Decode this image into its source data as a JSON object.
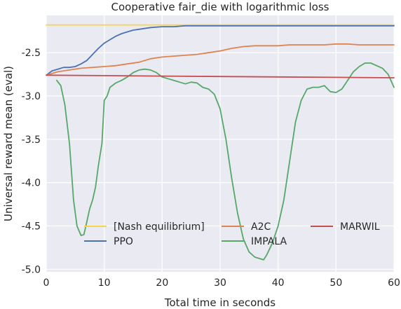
{
  "chart_data": {
    "type": "line",
    "title": "Cooperative fair_die with logarithmic loss",
    "xlabel": "Total time in seconds",
    "ylabel": "Universal reward mean (eval)",
    "xlim": [
      0,
      60
    ],
    "ylim": [
      -5.03,
      -2.07
    ],
    "xticks": [
      0,
      10,
      20,
      30,
      40,
      50,
      60
    ],
    "yticks": [
      -5.0,
      -4.5,
      -4.0,
      -3.5,
      -3.0,
      -2.5
    ],
    "xtick_labels": [
      "0",
      "10",
      "20",
      "30",
      "40",
      "50",
      "60"
    ],
    "ytick_labels": [
      "-5.0",
      "-4.5",
      "-4.0",
      "-3.5",
      "-3.0",
      "-2.5"
    ],
    "grid": true,
    "legend_position": "lower-center",
    "legend_columns": 3,
    "series": [
      {
        "name": "[Nash equilibrium]",
        "color": "#f7d547",
        "x": [
          0,
          60
        ],
        "y": [
          -2.18,
          -2.18
        ]
      },
      {
        "name": "PPO",
        "color": "#4c72b0",
        "x": [
          0,
          1,
          2,
          3,
          4,
          5,
          6,
          7,
          8,
          9,
          10,
          11,
          12,
          13,
          14,
          15,
          16,
          18,
          20,
          22,
          24,
          26,
          28,
          30,
          35,
          40,
          45,
          50,
          55,
          60
        ],
        "y": [
          -2.76,
          -2.71,
          -2.69,
          -2.67,
          -2.67,
          -2.66,
          -2.63,
          -2.59,
          -2.52,
          -2.45,
          -2.39,
          -2.35,
          -2.31,
          -2.28,
          -2.26,
          -2.24,
          -2.23,
          -2.21,
          -2.2,
          -2.2,
          -2.19,
          -2.19,
          -2.19,
          -2.19,
          -2.19,
          -2.19,
          -2.19,
          -2.19,
          -2.19,
          -2.19
        ]
      },
      {
        "name": "A2C",
        "color": "#dd8452",
        "x": [
          0,
          2,
          4,
          6,
          8,
          10,
          12,
          14,
          16,
          18,
          20,
          22,
          24,
          26,
          28,
          30,
          32,
          34,
          36,
          38,
          40,
          42,
          44,
          46,
          48,
          50,
          52,
          54,
          56,
          58,
          60
        ],
        "y": [
          -2.76,
          -2.72,
          -2.7,
          -2.68,
          -2.67,
          -2.66,
          -2.65,
          -2.63,
          -2.61,
          -2.57,
          -2.55,
          -2.54,
          -2.53,
          -2.52,
          -2.5,
          -2.48,
          -2.45,
          -2.43,
          -2.42,
          -2.42,
          -2.42,
          -2.41,
          -2.41,
          -2.41,
          -2.41,
          -2.4,
          -2.4,
          -2.41,
          -2.41,
          -2.41,
          -2.41
        ]
      },
      {
        "name": "IMPALA",
        "color": "#55a868",
        "x": [
          1.8,
          2.5,
          3.2,
          4,
          4.7,
          5.3,
          6,
          6.5,
          7,
          7.5,
          8,
          8.5,
          9,
          9.6,
          10,
          10.5,
          11,
          12,
          13,
          14,
          15,
          16,
          17,
          18,
          19,
          20,
          21,
          22,
          23,
          24,
          25,
          26,
          27,
          28,
          29,
          30,
          31,
          32,
          33,
          34,
          35,
          36,
          37,
          37.5,
          38,
          39,
          40,
          41,
          42,
          43,
          44,
          45,
          46,
          47,
          48,
          49,
          50,
          51,
          52,
          53,
          54,
          55,
          56,
          57,
          58,
          59,
          60
        ],
        "y": [
          -2.82,
          -2.88,
          -3.1,
          -3.55,
          -4.2,
          -4.5,
          -4.61,
          -4.6,
          -4.45,
          -4.3,
          -4.2,
          -4.05,
          -3.8,
          -3.55,
          -3.05,
          -3.0,
          -2.9,
          -2.85,
          -2.82,
          -2.78,
          -2.73,
          -2.7,
          -2.69,
          -2.7,
          -2.73,
          -2.78,
          -2.8,
          -2.82,
          -2.84,
          -2.86,
          -2.84,
          -2.85,
          -2.9,
          -2.92,
          -2.98,
          -3.15,
          -3.5,
          -3.95,
          -4.35,
          -4.65,
          -4.8,
          -4.86,
          -4.88,
          -4.89,
          -4.84,
          -4.7,
          -4.5,
          -4.2,
          -3.75,
          -3.3,
          -3.05,
          -2.92,
          -2.9,
          -2.9,
          -2.88,
          -2.95,
          -2.96,
          -2.92,
          -2.82,
          -2.72,
          -2.66,
          -2.62,
          -2.62,
          -2.65,
          -2.68,
          -2.75,
          -2.9
        ]
      },
      {
        "name": "MARWIL",
        "color": "#c44e52",
        "x": [
          0,
          10,
          20,
          30,
          40,
          50,
          60
        ],
        "y": [
          -2.76,
          -2.765,
          -2.77,
          -2.775,
          -2.78,
          -2.785,
          -2.79
        ]
      }
    ]
  }
}
